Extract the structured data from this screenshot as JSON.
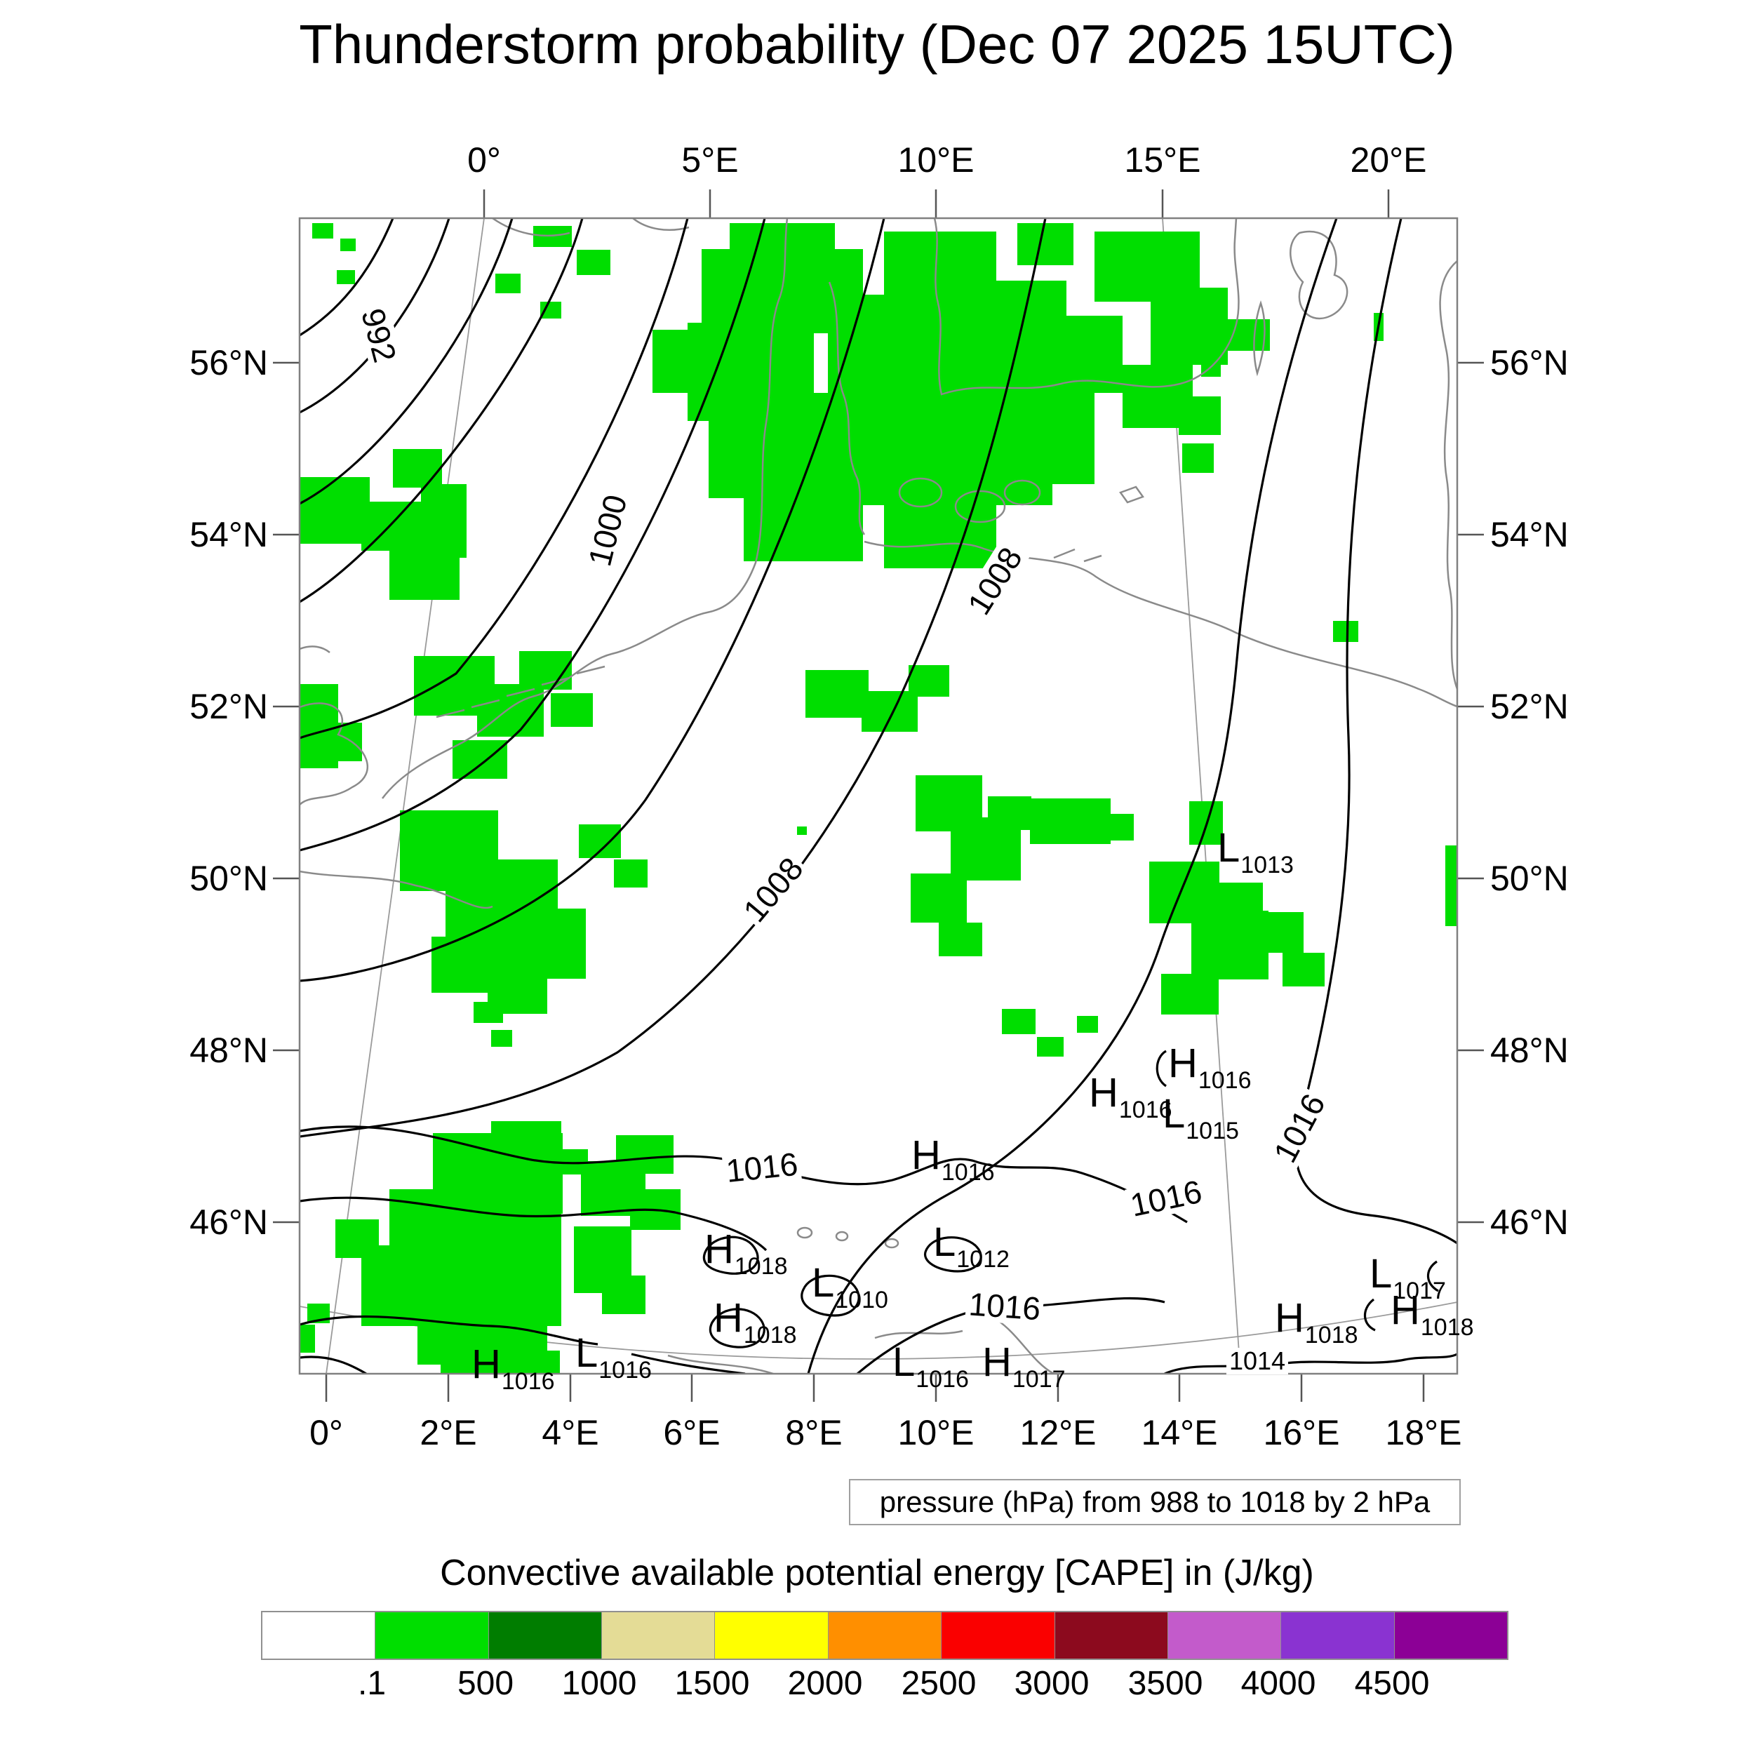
{
  "title": "Thunderstorm probability (Dec 07 2025 15UTC)",
  "axes": {
    "top": [
      "0°",
      "5°E",
      "10°E",
      "15°E",
      "20°E"
    ],
    "bottom": [
      "0°",
      "2°E",
      "4°E",
      "6°E",
      "8°E",
      "10°E",
      "12°E",
      "14°E",
      "16°E",
      "18°E"
    ],
    "left": [
      "56°N",
      "54°N",
      "52°N",
      "50°N",
      "48°N",
      "46°N"
    ],
    "right": [
      "56°N",
      "54°N",
      "52°N",
      "50°N",
      "48°N",
      "46°N"
    ]
  },
  "contour_labels": [
    {
      "text": "992"
    },
    {
      "text": "1000"
    },
    {
      "text": "1008"
    },
    {
      "text": "1008"
    },
    {
      "text": "1016"
    },
    {
      "text": "1016"
    },
    {
      "text": "1016"
    },
    {
      "text": "1016"
    },
    {
      "text": "1014"
    }
  ],
  "markers": [
    {
      "letter": "L",
      "value": "1013"
    },
    {
      "letter": "H",
      "value": "1016"
    },
    {
      "letter": "H",
      "value": "1016"
    },
    {
      "letter": "L",
      "value": "1015"
    },
    {
      "letter": "H",
      "value": "1016"
    },
    {
      "letter": "L",
      "value": "1012"
    },
    {
      "letter": "H",
      "value": "1018"
    },
    {
      "letter": "L",
      "value": "1010"
    },
    {
      "letter": "H",
      "value": "1018"
    },
    {
      "letter": "L",
      "value": "1016"
    },
    {
      "letter": "H",
      "value": "1016"
    },
    {
      "letter": "L",
      "value": "1016"
    },
    {
      "letter": "H",
      "value": "1017"
    },
    {
      "letter": "L",
      "value": "1017"
    },
    {
      "letter": "H",
      "value": "1018"
    },
    {
      "letter": "H",
      "value": "1018"
    }
  ],
  "pressure_note": "pressure (hPa) from 988 to 1018 by 2 hPa",
  "legend": {
    "title": "Convective available potential energy [CAPE] in (J/kg)",
    "labels": [
      ".1",
      "500",
      "1000",
      "1500",
      "2000",
      "2500",
      "3000",
      "3500",
      "4000",
      "4500"
    ],
    "colors": [
      "#ffffff",
      "#00de00",
      "#007d00",
      "#e4dc96",
      "#ffff00",
      "#ff8f00",
      "#fa0000",
      "#8c0a1e",
      "#c35bcb",
      "#8a33d1",
      "#8c0096"
    ]
  },
  "colors": {
    "cape_green": "#00de00",
    "coastline_gray": "#8a8a8a",
    "contour_black": "#000000",
    "frame_gray": "#808080"
  }
}
